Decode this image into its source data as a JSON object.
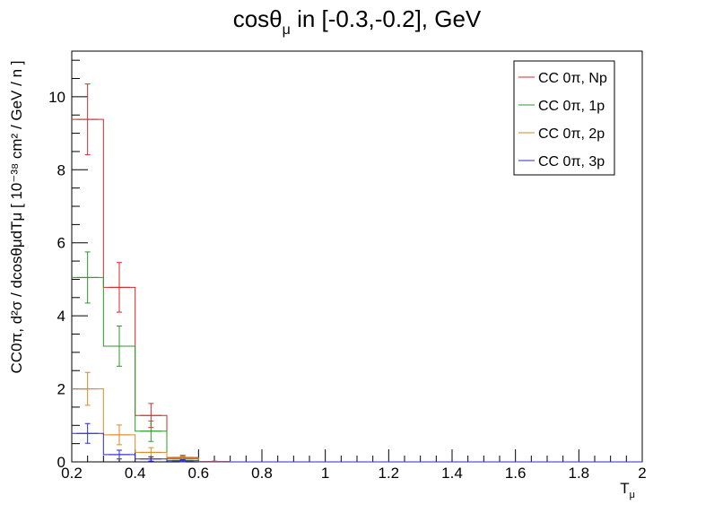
{
  "chart_data": {
    "type": "bar",
    "title_main": "cosθ",
    "title_sub": "μ",
    "title_rest": " in [-0.3,-0.2], GeV",
    "xlabel_main": "T",
    "xlabel_sub": "μ",
    "ylabel": "CC0π, d²σ / dcosθμdTμ [ 10⁻³⁸ cm² / GeV / n ]",
    "xlim": [
      0.2,
      2.0
    ],
    "ylim": [
      0,
      11.25
    ],
    "x_ticks": [
      "0.2",
      "0.4",
      "0.6",
      "0.8",
      "1",
      "1.2",
      "1.4",
      "1.6",
      "1.8",
      "2"
    ],
    "y_ticks": [
      "0",
      "2",
      "4",
      "6",
      "8",
      "10"
    ],
    "bin_edges": [
      0.2,
      0.3,
      0.4,
      0.5,
      0.6,
      0.7,
      0.8,
      0.9,
      1.0,
      1.1,
      1.2,
      1.3,
      1.4,
      1.5,
      1.6,
      1.7,
      1.8,
      1.9,
      2.0
    ],
    "legend_position": "top-right",
    "grid": false,
    "series": [
      {
        "name": "CC 0π, Np",
        "color": "#d42a2a",
        "values": [
          9.38,
          4.78,
          1.27,
          0.12,
          0.01,
          0,
          0,
          0,
          0,
          0,
          0,
          0,
          0,
          0,
          0,
          0,
          0,
          0
        ],
        "errors": [
          0.97,
          0.68,
          0.33,
          0.06,
          0.01,
          0,
          0,
          0,
          0,
          0,
          0,
          0,
          0,
          0,
          0,
          0,
          0,
          0
        ]
      },
      {
        "name": "CC 0π, 1p",
        "color": "#2a9a2a",
        "values": [
          5.05,
          3.17,
          0.84,
          0.08,
          0.01,
          0,
          0,
          0,
          0,
          0,
          0,
          0,
          0,
          0,
          0,
          0,
          0,
          0
        ],
        "errors": [
          0.7,
          0.55,
          0.28,
          0.05,
          0.01,
          0,
          0,
          0,
          0,
          0,
          0,
          0,
          0,
          0,
          0,
          0,
          0,
          0
        ]
      },
      {
        "name": "CC 0π, 2p",
        "color": "#d98a2a",
        "values": [
          2.0,
          0.74,
          0.26,
          0.1,
          0.01,
          0,
          0,
          0,
          0,
          0,
          0,
          0,
          0,
          0,
          0,
          0,
          0,
          0
        ],
        "errors": [
          0.45,
          0.27,
          0.13,
          0.06,
          0.01,
          0,
          0,
          0,
          0,
          0,
          0,
          0,
          0,
          0,
          0,
          0,
          0,
          0
        ]
      },
      {
        "name": "CC 0π, 3p",
        "color": "#2a2ad4",
        "values": [
          0.78,
          0.2,
          0.08,
          0.03,
          0.0,
          0,
          0,
          0,
          0,
          0,
          0,
          0,
          0,
          0,
          0,
          0,
          0,
          0
        ],
        "errors": [
          0.27,
          0.12,
          0.06,
          0.03,
          0.0,
          0,
          0,
          0,
          0,
          0,
          0,
          0,
          0,
          0,
          0,
          0,
          0,
          0
        ]
      }
    ]
  }
}
